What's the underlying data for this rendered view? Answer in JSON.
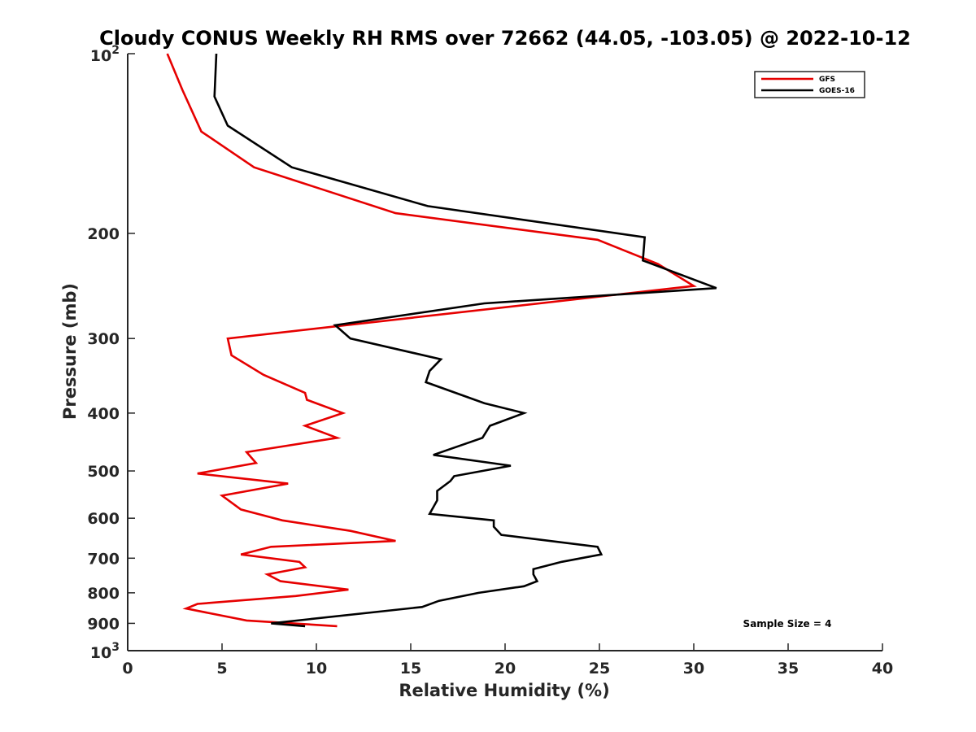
{
  "chart_data": {
    "type": "line",
    "title": "Cloudy CONUS Weekly RH RMS over 72662 (44.05, -103.05) @ 2022-10-12",
    "xlabel": "Relative Humidity (%)",
    "ylabel": "Pressure (mb)",
    "xlim": [
      0,
      40
    ],
    "ylim": [
      100,
      1000
    ],
    "y_scale": "log",
    "y_reversed": true,
    "grid": false,
    "legend_position": "top-right",
    "x_ticks": [
      "0",
      "5",
      "10",
      "15",
      "20",
      "25",
      "30",
      "35",
      "40"
    ],
    "y_ticks": [
      {
        "value": 100,
        "base": "10",
        "exp": "2"
      },
      {
        "value": 200,
        "label": "200"
      },
      {
        "value": 300,
        "label": "300"
      },
      {
        "value": 400,
        "label": "400"
      },
      {
        "value": 500,
        "label": "500"
      },
      {
        "value": 600,
        "label": "600"
      },
      {
        "value": 700,
        "label": "700"
      },
      {
        "value": 800,
        "label": "800"
      },
      {
        "value": 900,
        "label": "900"
      },
      {
        "value": 1000,
        "base": "10",
        "exp": "3"
      }
    ],
    "series": [
      {
        "name": "GFS",
        "color": "#e60000",
        "points": [
          [
            2.1,
            100
          ],
          [
            2.9,
            115
          ],
          [
            3.9,
            135
          ],
          [
            6.7,
            155
          ],
          [
            14.2,
            185
          ],
          [
            24.9,
            205
          ],
          [
            28.1,
            225
          ],
          [
            30.0,
            245
          ],
          [
            5.3,
            300
          ],
          [
            5.5,
            320
          ],
          [
            7.2,
            345
          ],
          [
            9.4,
            370
          ],
          [
            9.5,
            380
          ],
          [
            11.4,
            400
          ],
          [
            9.4,
            420
          ],
          [
            11.1,
            440
          ],
          [
            6.3,
            465
          ],
          [
            6.8,
            485
          ],
          [
            3.7,
            505
          ],
          [
            8.5,
            525
          ],
          [
            5.0,
            550
          ],
          [
            6.0,
            580
          ],
          [
            8.2,
            605
          ],
          [
            11.8,
            630
          ],
          [
            14.2,
            655
          ],
          [
            7.6,
            670
          ],
          [
            6.0,
            690
          ],
          [
            9.1,
            710
          ],
          [
            9.4,
            725
          ],
          [
            7.4,
            745
          ],
          [
            8.1,
            765
          ],
          [
            11.7,
            790
          ],
          [
            8.9,
            810
          ],
          [
            3.7,
            835
          ],
          [
            3.1,
            850
          ],
          [
            6.3,
            890
          ],
          [
            11.1,
            910
          ]
        ]
      },
      {
        "name": "GOES-16",
        "color": "#000000",
        "points": [
          [
            4.7,
            100
          ],
          [
            4.6,
            118
          ],
          [
            5.3,
            132
          ],
          [
            8.7,
            155
          ],
          [
            15.9,
            180
          ],
          [
            27.4,
            203
          ],
          [
            27.3,
            222
          ],
          [
            31.2,
            247
          ],
          [
            18.9,
            262
          ],
          [
            11.0,
            285
          ],
          [
            11.8,
            300
          ],
          [
            16.6,
            325
          ],
          [
            16.0,
            340
          ],
          [
            15.8,
            355
          ],
          [
            18.9,
            385
          ],
          [
            21.0,
            400
          ],
          [
            19.2,
            420
          ],
          [
            18.8,
            440
          ],
          [
            16.2,
            470
          ],
          [
            20.3,
            490
          ],
          [
            17.3,
            510
          ],
          [
            17.1,
            520
          ],
          [
            16.4,
            540
          ],
          [
            16.4,
            560
          ],
          [
            16.0,
            590
          ],
          [
            19.4,
            605
          ],
          [
            19.4,
            620
          ],
          [
            19.8,
            640
          ],
          [
            24.9,
            670
          ],
          [
            25.1,
            690
          ],
          [
            23.0,
            710
          ],
          [
            21.5,
            730
          ],
          [
            21.5,
            745
          ],
          [
            21.7,
            765
          ],
          [
            21.0,
            780
          ],
          [
            18.6,
            800
          ],
          [
            16.5,
            825
          ],
          [
            15.6,
            845
          ],
          [
            7.6,
            900
          ],
          [
            9.4,
            910
          ]
        ]
      }
    ],
    "legend": [
      "GFS",
      "GOES-16"
    ],
    "annotation": "Sample Size = 4"
  }
}
